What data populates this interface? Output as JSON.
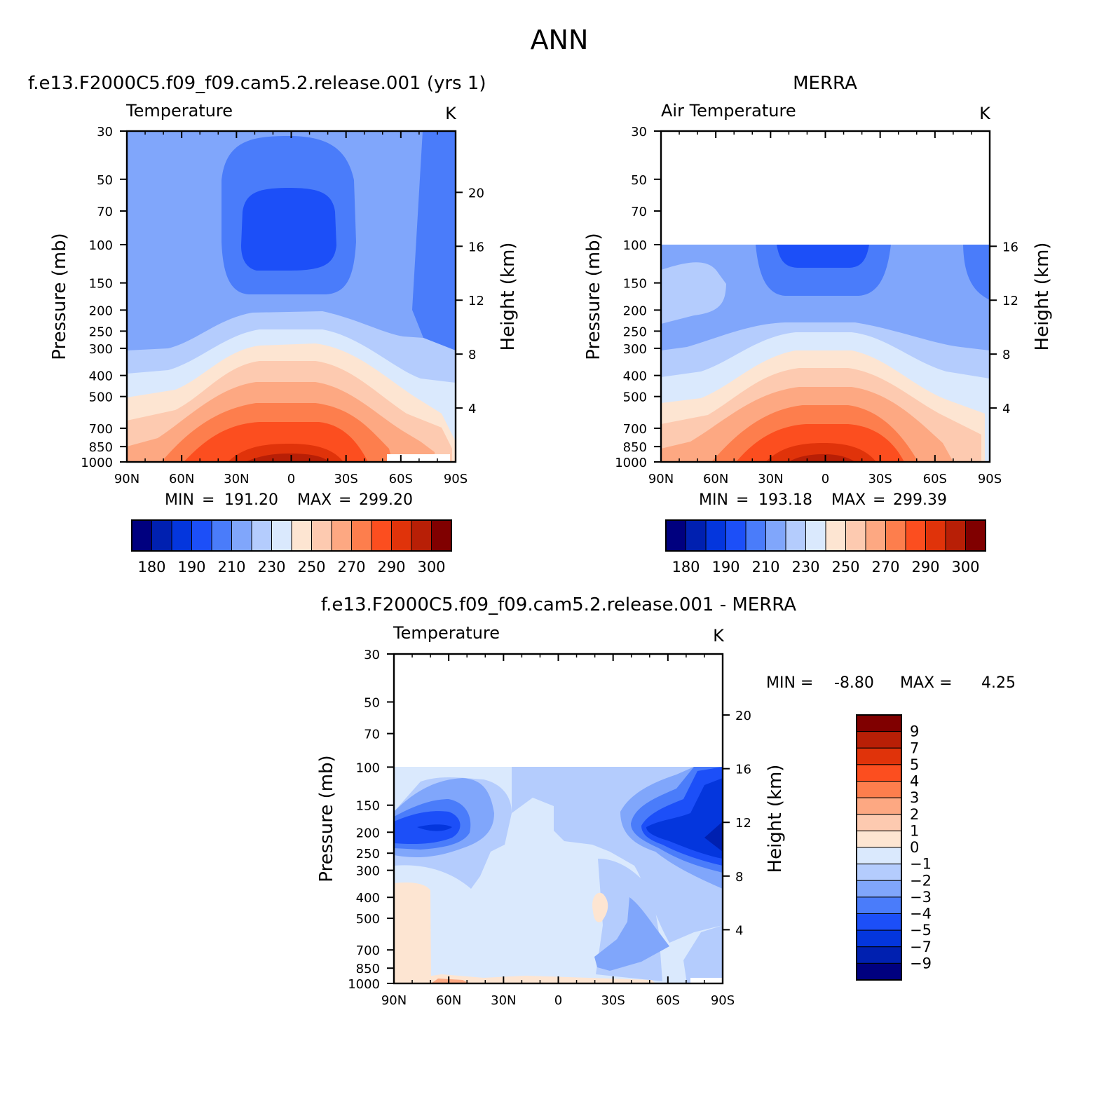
{
  "figure_title": "ANN",
  "chart_data": [
    {
      "type": "heatmap",
      "case_title": "f.e13.F2000C5.f09_f09.cam5.2.release.001 (yrs 1)",
      "variable": "Temperature",
      "units": "K",
      "ylabel": "Pressure (mb)",
      "ylabel_right": "Height (km)",
      "x_ticks": [
        "90N",
        "60N",
        "30N",
        "0",
        "30S",
        "60S",
        "90S"
      ],
      "y_ticks": [
        "30",
        "50",
        "70",
        "100",
        "150",
        "200",
        "250",
        "300",
        "400",
        "500",
        "700",
        "850",
        "1000"
      ],
      "height_ticks": [
        "20",
        "16",
        "12",
        "8",
        "4"
      ],
      "min_label": "MIN",
      "min": "191.20",
      "max_label": "MAX",
      "max": "299.20",
      "ylim": [
        1000,
        30
      ],
      "xlim": [
        90,
        -90
      ],
      "data_top_mb": 30,
      "colorbar_labels": [
        "180",
        "190",
        "210",
        "230",
        "250",
        "270",
        "290",
        "300"
      ],
      "contour_levels": [
        180,
        185,
        190,
        200,
        210,
        220,
        230,
        240,
        250,
        260,
        270,
        280,
        290,
        295,
        300
      ]
    },
    {
      "type": "heatmap",
      "case_title": "MERRA",
      "variable": "Air Temperature",
      "units": "K",
      "ylabel": "Pressure (mb)",
      "ylabel_right": "Height (km)",
      "x_ticks": [
        "90N",
        "60N",
        "30N",
        "0",
        "30S",
        "60S",
        "90S"
      ],
      "y_ticks": [
        "30",
        "50",
        "70",
        "100",
        "150",
        "200",
        "250",
        "300",
        "400",
        "500",
        "700",
        "850",
        "1000"
      ],
      "height_ticks": [
        "16",
        "12",
        "8",
        "4"
      ],
      "min_label": "MIN",
      "min": "193.18",
      "max_label": "MAX",
      "max": "299.39",
      "ylim": [
        1000,
        30
      ],
      "xlim": [
        90,
        -90
      ],
      "data_top_mb": 100,
      "colorbar_labels": [
        "180",
        "190",
        "210",
        "230",
        "250",
        "270",
        "290",
        "300"
      ],
      "contour_levels": [
        180,
        185,
        190,
        200,
        210,
        220,
        230,
        240,
        250,
        260,
        270,
        280,
        290,
        295,
        300
      ]
    },
    {
      "type": "heatmap",
      "case_title": "f.e13.F2000C5.f09_f09.cam5.2.release.001 - MERRA",
      "variable": "Temperature",
      "units": "K",
      "ylabel": "Pressure (mb)",
      "ylabel_right": "Height (km)",
      "x_ticks": [
        "90N",
        "60N",
        "30N",
        "0",
        "30S",
        "60S",
        "90S"
      ],
      "y_ticks": [
        "30",
        "50",
        "70",
        "100",
        "150",
        "200",
        "250",
        "300",
        "400",
        "500",
        "700",
        "850",
        "1000"
      ],
      "height_ticks": [
        "20",
        "16",
        "12",
        "8",
        "4"
      ],
      "min_label": "MIN =",
      "min": "-8.80",
      "max_label": "MAX =",
      "max": "4.25",
      "ylim": [
        1000,
        30
      ],
      "xlim": [
        90,
        -90
      ],
      "data_top_mb": 100,
      "colorbar_labels": [
        "9",
        "7",
        "5",
        "4",
        "3",
        "2",
        "1",
        "0",
        "-1",
        "-2",
        "-3",
        "-4",
        "-5",
        "-7",
        "-9"
      ],
      "contour_levels": [
        -9,
        -7,
        -5,
        -4,
        -3,
        -2,
        -1,
        0,
        1,
        2,
        3,
        4,
        5,
        7,
        9
      ]
    }
  ],
  "colors": {
    "temp_palette": [
      "#00007f",
      "#0020b0",
      "#0436dd",
      "#1c4ff8",
      "#4a7cfa",
      "#80a6fb",
      "#b4ccfd",
      "#dae9fd",
      "#fde5d2",
      "#fdcab0",
      "#fda882",
      "#fd7e4d",
      "#fc4e1f",
      "#e0330a",
      "#b81f06",
      "#800000"
    ],
    "diff_palette": [
      "#800000",
      "#b81f06",
      "#e0330a",
      "#fc4e1f",
      "#fd7e4d",
      "#fda882",
      "#fdcab0",
      "#fde5d2",
      "#dae9fd",
      "#b4ccfd",
      "#80a6fb",
      "#4a7cfa",
      "#1c4ff8",
      "#0436dd",
      "#0020b0",
      "#00007f"
    ]
  }
}
